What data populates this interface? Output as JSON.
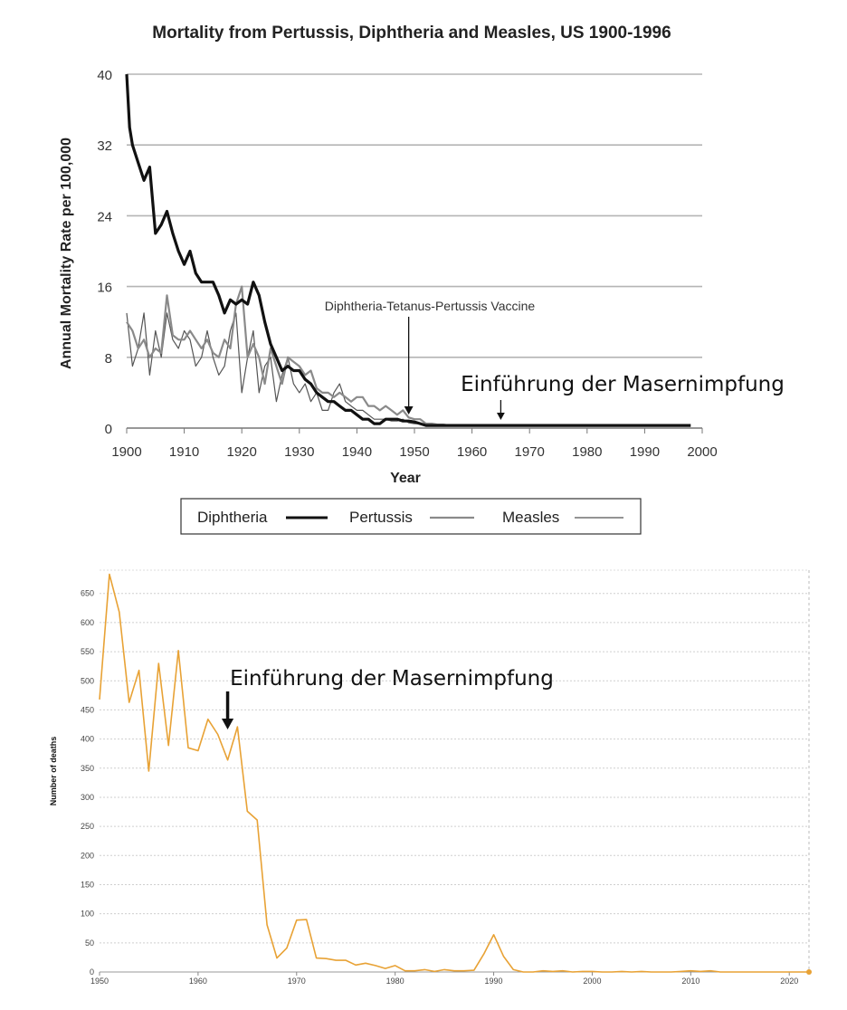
{
  "chart_data": [
    {
      "type": "line",
      "title": "Mortality from Pertussis, Diphtheria and Measles, US 1900-1996",
      "xlabel": "Year",
      "ylabel": "Annual Mortality Rate per 100,000",
      "xlim": [
        1900,
        2000
      ],
      "ylim": [
        0,
        40
      ],
      "xticks": [
        "1900",
        "1910",
        "1920",
        "1930",
        "1940",
        "1950",
        "1960",
        "1970",
        "1980",
        "1990",
        "2000"
      ],
      "yticks": [
        "0",
        "8",
        "16",
        "24",
        "32",
        "40"
      ],
      "grid": "horizontal",
      "legend_position": "bottom",
      "series": [
        {
          "name": "Diphtheria",
          "color": "#111111",
          "x": [
            1900,
            1900.5,
            1901,
            1902,
            1903,
            1904,
            1905,
            1906,
            1907,
            1908,
            1909,
            1910,
            1911,
            1912,
            1913,
            1914,
            1915,
            1916,
            1917,
            1918,
            1919,
            1920,
            1921,
            1922,
            1923,
            1924,
            1925,
            1926,
            1927,
            1928,
            1929,
            1930,
            1931,
            1932,
            1933,
            1934,
            1935,
            1936,
            1937,
            1938,
            1939,
            1940,
            1941,
            1942,
            1943,
            1944,
            1945,
            1946,
            1947,
            1948,
            1949,
            1950,
            1951,
            1952,
            1955,
            1960,
            1970,
            1980,
            1990,
            1998
          ],
          "y": [
            40,
            34,
            32,
            30,
            28,
            29.5,
            22,
            23,
            24.5,
            22,
            20,
            18.5,
            20,
            17.5,
            16.5,
            16.5,
            16.5,
            15,
            13,
            14.5,
            14,
            14.5,
            14,
            16.5,
            15,
            12,
            9.5,
            8,
            6.5,
            7,
            6.5,
            6.5,
            5.5,
            5,
            4,
            3.5,
            3,
            3,
            2.5,
            2,
            2,
            1.5,
            1,
            1,
            0.5,
            0.5,
            1,
            1,
            1,
            0.8,
            0.8,
            0.7,
            0.5,
            0.3,
            0.3,
            0.3,
            0.3,
            0.3,
            0.3,
            0.3
          ]
        },
        {
          "name": "Pertussis",
          "color": "#8a8a8a",
          "x": [
            1900,
            1901,
            1902,
            1903,
            1904,
            1905,
            1906,
            1907,
            1908,
            1909,
            1910,
            1911,
            1912,
            1913,
            1914,
            1915,
            1916,
            1917,
            1918,
            1919,
            1920,
            1921,
            1922,
            1923,
            1924,
            1925,
            1926,
            1927,
            1928,
            1929,
            1930,
            1931,
            1932,
            1933,
            1934,
            1935,
            1936,
            1937,
            1938,
            1939,
            1940,
            1941,
            1942,
            1943,
            1944,
            1945,
            1946,
            1947,
            1948,
            1949,
            1950,
            1951,
            1952,
            1953,
            1954,
            1955,
            1956
          ],
          "y": [
            12,
            11,
            9,
            10,
            8,
            9,
            8.5,
            15,
            10.5,
            10,
            10,
            11,
            10,
            9,
            10,
            8.5,
            8,
            10,
            9,
            14,
            16,
            8,
            9.5,
            8,
            5,
            9,
            7,
            5,
            8,
            7.5,
            7,
            6,
            6.5,
            4.5,
            4,
            4,
            3.5,
            4,
            3.5,
            3,
            3.5,
            3.5,
            2.5,
            2.5,
            2,
            2.5,
            2,
            1.5,
            2,
            1.2,
            1,
            1,
            0.5,
            0.5,
            0.4,
            0.4,
            0.3
          ]
        },
        {
          "name": "Measles",
          "color": "#555555",
          "x": [
            1900,
            1901,
            1902,
            1903,
            1904,
            1905,
            1906,
            1907,
            1908,
            1909,
            1910,
            1911,
            1912,
            1913,
            1914,
            1915,
            1916,
            1917,
            1918,
            1919,
            1920,
            1921,
            1922,
            1923,
            1924,
            1925,
            1926,
            1927,
            1928,
            1929,
            1930,
            1931,
            1932,
            1933,
            1934,
            1935,
            1936,
            1937,
            1938,
            1939,
            1940,
            1941,
            1942,
            1943,
            1944,
            1945,
            1946,
            1947,
            1948,
            1949,
            1950,
            1951,
            1952,
            1953
          ],
          "y": [
            13,
            7,
            9,
            13,
            6,
            11,
            8,
            13,
            10,
            9,
            11,
            10,
            7,
            8,
            11,
            8,
            6,
            7,
            11,
            13,
            4,
            8,
            11,
            4,
            7,
            8,
            3,
            6,
            8,
            5,
            4,
            5,
            3,
            4,
            2,
            2,
            4,
            5,
            3,
            2.5,
            2,
            2,
            1.5,
            1,
            1,
            1,
            0.8,
            0.8,
            1,
            0.6,
            0.5,
            0.5,
            0.5,
            0.3
          ]
        }
      ],
      "annotations": [
        {
          "text": "Diphtheria-Tetanus-Pertussis Vaccine",
          "x": 1949
        },
        {
          "text": "Einführung der Masernimpfung",
          "x": 1965
        }
      ]
    },
    {
      "type": "line",
      "ylabel": "Number of deaths",
      "xlim": [
        1950,
        2022
      ],
      "ylim": [
        0,
        690
      ],
      "xticks": [
        "1950",
        "1960",
        "1970",
        "1980",
        "1990",
        "2000",
        "2010",
        "2020"
      ],
      "yticks": [
        "0",
        "50",
        "100",
        "150",
        "200",
        "250",
        "300",
        "350",
        "400",
        "450",
        "500",
        "550",
        "600",
        "650"
      ],
      "grid": "horizontal dotted",
      "color": "#e8a235",
      "x": [
        1950,
        1951,
        1952,
        1953,
        1954,
        1955,
        1956,
        1957,
        1958,
        1959,
        1960,
        1961,
        1962,
        1963,
        1964,
        1965,
        1966,
        1967,
        1968,
        1969,
        1970,
        1971,
        1972,
        1973,
        1974,
        1975,
        1976,
        1977,
        1978,
        1979,
        1980,
        1981,
        1982,
        1983,
        1984,
        1985,
        1986,
        1987,
        1988,
        1989,
        1990,
        1991,
        1992,
        1993,
        1994,
        1995,
        1996,
        1997,
        1998,
        1999,
        2000,
        2001,
        2002,
        2003,
        2004,
        2005,
        2006,
        2007,
        2008,
        2009,
        2010,
        2011,
        2012,
        2013,
        2014,
        2015,
        2016,
        2017,
        2018,
        2019,
        2020,
        2021,
        2022
      ],
      "y": [
        468,
        683,
        618,
        463,
        518,
        345,
        530,
        389,
        552,
        385,
        380,
        434,
        408,
        364,
        421,
        276,
        261,
        81,
        24,
        41,
        89,
        90,
        24,
        23,
        20,
        20,
        12,
        15,
        11,
        6,
        11,
        2,
        2,
        4,
        1,
        4,
        2,
        2,
        3,
        31,
        64,
        27,
        4,
        0,
        0,
        2,
        1,
        2,
        0,
        1,
        1,
        0,
        0,
        1,
        0,
        1,
        0,
        0,
        0,
        1,
        2,
        1,
        2,
        0,
        0,
        0,
        0,
        0,
        0,
        0,
        0,
        0,
        0
      ],
      "annotations": [
        {
          "text": "Einführung der Masernimpfung",
          "x": 1963
        }
      ]
    }
  ],
  "legend": {
    "diphtheria": "Diphtheria",
    "pertussis": "Pertussis",
    "measles": "Measles"
  }
}
